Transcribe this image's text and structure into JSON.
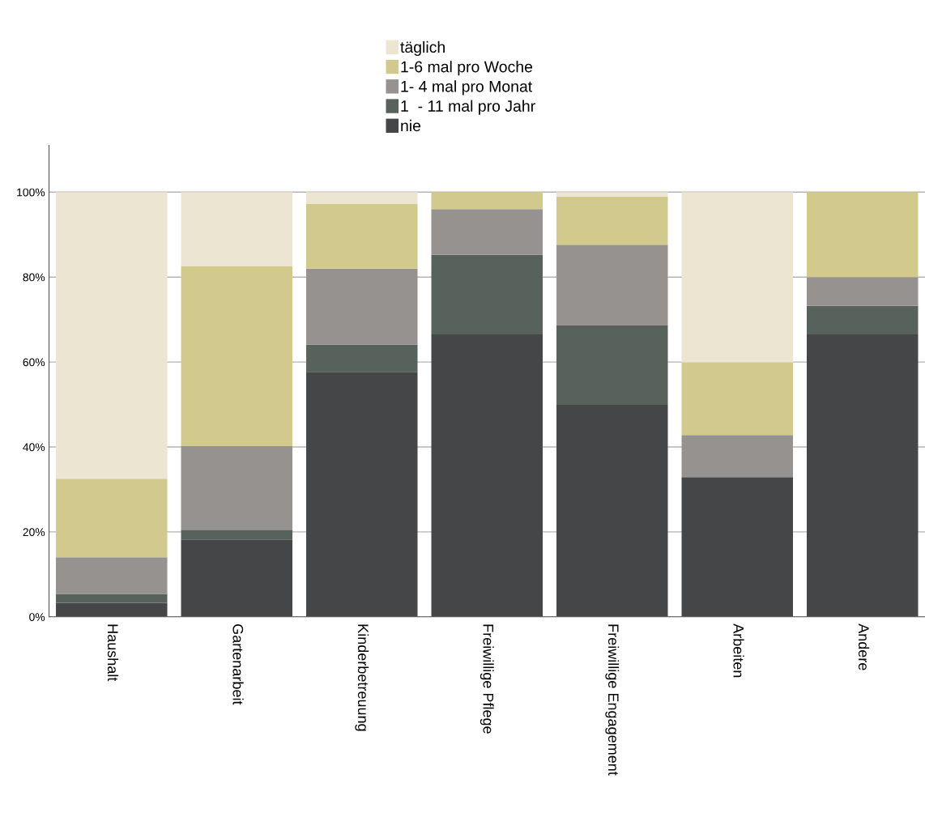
{
  "chart_data": {
    "type": "bar",
    "stacked": true,
    "categories": [
      "Haushalt",
      "Gartenarbeit",
      "Kinderbetreuung",
      "Freiwillige Pflege",
      "Freiwillige Engagement",
      "Arbeiten",
      "Andere"
    ],
    "series": [
      {
        "name": "nie",
        "color": "#454648",
        "values": [
          3.3,
          18.2,
          57.7,
          66.5,
          49.9,
          32.9,
          66.5
        ]
      },
      {
        "name": "1  - 11 mal pro Jahr",
        "color": "#58625c",
        "values": [
          2.1,
          2.3,
          6.4,
          18.8,
          18.7,
          0,
          6.7
        ]
      },
      {
        "name": "1- 4 mal pro Monat",
        "color": "#969290",
        "values": [
          8.6,
          19.7,
          17.9,
          10.7,
          19.0,
          9.9,
          6.8
        ]
      },
      {
        "name": "1-6 mal pro Woche",
        "color": "#d1ca8c",
        "values": [
          18.5,
          42.4,
          15.3,
          4.0,
          11.3,
          17.1,
          20.0
        ]
      },
      {
        "name": "täglich",
        "color": "#ebe5d1",
        "values": [
          67.5,
          17.4,
          2.7,
          0,
          1.1,
          40.1,
          0
        ]
      }
    ],
    "ylim": [
      0,
      111
    ],
    "yticks": [
      {
        "value": 0,
        "label": "0%"
      },
      {
        "value": 20,
        "label": "20%"
      },
      {
        "value": 40,
        "label": "40%"
      },
      {
        "value": 60,
        "label": "60%"
      },
      {
        "value": 80,
        "label": "80%"
      },
      {
        "value": 100,
        "label": "100%"
      }
    ],
    "grid": "y",
    "legend": "top"
  }
}
